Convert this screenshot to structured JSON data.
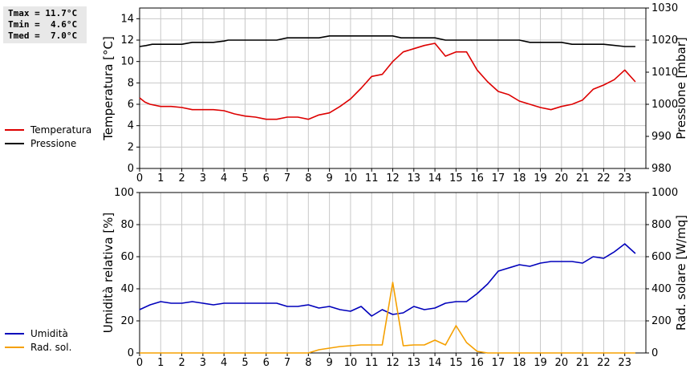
{
  "stats": {
    "tmax": "Tmax = 11.7°C",
    "tmin": "Tmin =  4.6°C",
    "tmed": "Tmed =  7.0°C"
  },
  "colors": {
    "temperatura": "#dd0000",
    "pressione": "#000000",
    "umidita": "#0000bb",
    "radiazione": "#f5a000",
    "grid": "#c8c8c8"
  },
  "chart_data": [
    {
      "type": "line",
      "ylabel_left": "Temperatura [°C]",
      "ylabel_right": "Pressione [mbar]",
      "xlim": [
        0,
        24
      ],
      "ylim_left": [
        0,
        15
      ],
      "ylim_right": [
        980,
        1030
      ],
      "x_ticks": [
        "0",
        "1",
        "2",
        "3",
        "4",
        "5",
        "6",
        "7",
        "8",
        "9",
        "10",
        "11",
        "12",
        "13",
        "14",
        "15",
        "16",
        "17",
        "18",
        "19",
        "20",
        "21",
        "22",
        "23"
      ],
      "y_ticks_left": [
        "0",
        "2",
        "4",
        "6",
        "8",
        "10",
        "12",
        "14"
      ],
      "y_ticks_right": [
        "980",
        "990",
        "1000",
        "1010",
        "1020",
        "1030"
      ],
      "grid": true,
      "legend_position": "left",
      "series": [
        {
          "name": "Temperatura",
          "axis": "left",
          "x": [
            0,
            0.25,
            0.5,
            1,
            1.5,
            2,
            2.5,
            3,
            3.5,
            4,
            4.5,
            5,
            5.5,
            6,
            6.5,
            7,
            7.5,
            8,
            8.5,
            9,
            9.5,
            10,
            10.5,
            11,
            11.5,
            12,
            12.5,
            13,
            13.5,
            14,
            14.5,
            15,
            15.5,
            16,
            16.5,
            17,
            17.5,
            18,
            18.5,
            19,
            19.5,
            20,
            20.5,
            21,
            21.5,
            22,
            22.5,
            23,
            23.5
          ],
          "y": [
            6.6,
            6.2,
            6.0,
            5.8,
            5.8,
            5.7,
            5.5,
            5.5,
            5.5,
            5.4,
            5.1,
            4.9,
            4.8,
            4.6,
            4.6,
            4.8,
            4.8,
            4.6,
            5.0,
            5.2,
            5.8,
            6.5,
            7.5,
            8.6,
            8.8,
            10.0,
            10.9,
            11.2,
            11.5,
            11.7,
            10.5,
            10.9,
            10.9,
            9.2,
            8.1,
            7.2,
            6.9,
            6.3,
            6.0,
            5.7,
            5.5,
            5.8,
            6.0,
            6.4,
            7.4,
            7.8,
            8.3,
            9.2,
            8.1
          ]
        },
        {
          "name": "Pressione",
          "axis": "right",
          "x": [
            0,
            0.3,
            0.6,
            1,
            1.5,
            2,
            2.5,
            2.7,
            3,
            3.5,
            4,
            4.2,
            5,
            6,
            6.5,
            7,
            7.5,
            8,
            8.5,
            9,
            9.3,
            10,
            11,
            12,
            12.4,
            13,
            14,
            14.5,
            15,
            16,
            17,
            18,
            18.5,
            19,
            20,
            20.5,
            21,
            22,
            23,
            23.5
          ],
          "y": [
            1018.0,
            1018.3,
            1018.7,
            1018.7,
            1018.7,
            1018.7,
            1019.3,
            1019.3,
            1019.3,
            1019.3,
            1019.7,
            1020.0,
            1020.0,
            1020.0,
            1020.0,
            1020.7,
            1020.7,
            1020.7,
            1020.7,
            1021.3,
            1021.3,
            1021.3,
            1021.3,
            1021.3,
            1020.7,
            1020.7,
            1020.7,
            1020.0,
            1020.0,
            1020.0,
            1020.0,
            1020.0,
            1019.3,
            1019.3,
            1019.3,
            1018.7,
            1018.7,
            1018.7,
            1018.0,
            1018.0
          ]
        }
      ]
    },
    {
      "type": "line",
      "ylabel_left": "Umidità relativa [%]",
      "ylabel_right": "Rad. solare [W/mq]",
      "xlim": [
        0,
        24
      ],
      "ylim_left": [
        0,
        100
      ],
      "ylim_right": [
        0,
        1000
      ],
      "x_ticks": [
        "0",
        "1",
        "2",
        "3",
        "4",
        "5",
        "6",
        "7",
        "8",
        "9",
        "10",
        "11",
        "12",
        "13",
        "14",
        "15",
        "16",
        "17",
        "18",
        "19",
        "20",
        "21",
        "22",
        "23"
      ],
      "y_ticks_left": [
        "0",
        "20",
        "40",
        "60",
        "80",
        "100"
      ],
      "y_ticks_right": [
        "0",
        "200",
        "400",
        "600",
        "800",
        "1000"
      ],
      "grid": true,
      "legend_position": "left",
      "series": [
        {
          "name": "Umidità",
          "axis": "left",
          "x": [
            0,
            0.5,
            1,
            1.5,
            2,
            2.5,
            3,
            3.5,
            4,
            4.5,
            5,
            5.5,
            6,
            6.5,
            7,
            7.5,
            8,
            8.5,
            9,
            9.5,
            10,
            10.5,
            11,
            11.5,
            12,
            12.5,
            13,
            13.5,
            14,
            14.5,
            15,
            15.5,
            16,
            16.5,
            17,
            17.5,
            18,
            18.5,
            19,
            19.5,
            20,
            20.5,
            21,
            21.5,
            22,
            22.5,
            23,
            23.5
          ],
          "y": [
            27,
            30,
            32,
            31,
            31,
            32,
            31,
            30,
            31,
            31,
            31,
            31,
            31,
            31,
            29,
            29,
            30,
            28,
            29,
            27,
            26,
            29,
            23,
            27,
            24,
            25,
            29,
            27,
            28,
            31,
            32,
            32,
            37,
            43,
            51,
            53,
            55,
            54,
            56,
            57,
            57,
            57,
            56,
            60,
            59,
            63,
            68,
            62
          ]
        },
        {
          "name": "Rad. sol.",
          "axis": "right",
          "x": [
            0,
            1,
            2,
            3,
            4,
            5,
            6,
            7,
            8,
            8.5,
            9,
            9.5,
            10,
            10.5,
            11,
            11.5,
            12,
            12.5,
            13,
            13.5,
            14,
            14.5,
            15,
            15.5,
            16,
            16.5,
            17,
            18,
            19,
            20,
            21,
            22,
            23,
            23.5
          ],
          "y": [
            0,
            0,
            0,
            0,
            0,
            0,
            0,
            0,
            0,
            20,
            30,
            40,
            45,
            50,
            50,
            50,
            440,
            45,
            50,
            50,
            80,
            50,
            170,
            65,
            10,
            0,
            0,
            0,
            0,
            0,
            0,
            0,
            0,
            0
          ]
        }
      ]
    }
  ]
}
